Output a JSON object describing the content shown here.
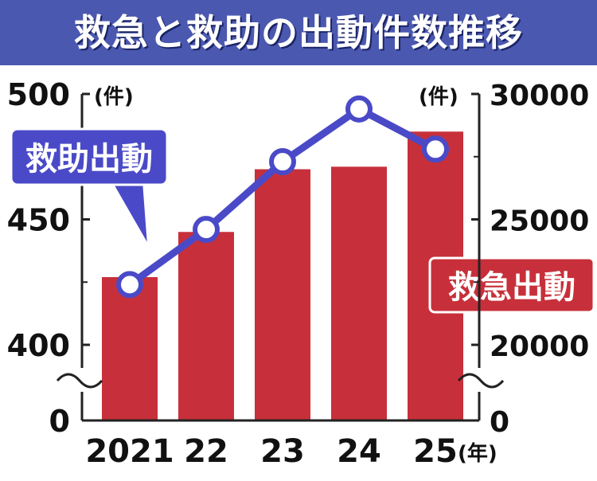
{
  "title": "救急と救助の出動件数推移",
  "colors": {
    "title_bg": "#4a58b0",
    "rescue": "#4a4ac8",
    "emergency": "#c7303a",
    "frame": "#222222"
  },
  "chart_data": {
    "type": "bar",
    "title": "救急と救助の出動件数推移",
    "categories": [
      "2021",
      "22",
      "23",
      "24",
      "25"
    ],
    "x_unit": "(年)",
    "series": [
      {
        "name": "救急出動",
        "type": "bar",
        "axis": "right",
        "values": [
          22700,
          24500,
          27000,
          27100,
          28500
        ]
      },
      {
        "name": "救助出動",
        "type": "line",
        "axis": "left",
        "values": [
          424,
          446,
          473,
          494,
          478
        ]
      }
    ],
    "left_axis": {
      "unit": "(件)",
      "ticks": [
        "500",
        "450",
        "400",
        "0"
      ],
      "range": [
        400,
        500
      ],
      "broken": true
    },
    "right_axis": {
      "unit": "(件)",
      "ticks": [
        "30000",
        "25000",
        "20000",
        "0"
      ],
      "range": [
        20000,
        30000
      ],
      "broken": true
    }
  }
}
